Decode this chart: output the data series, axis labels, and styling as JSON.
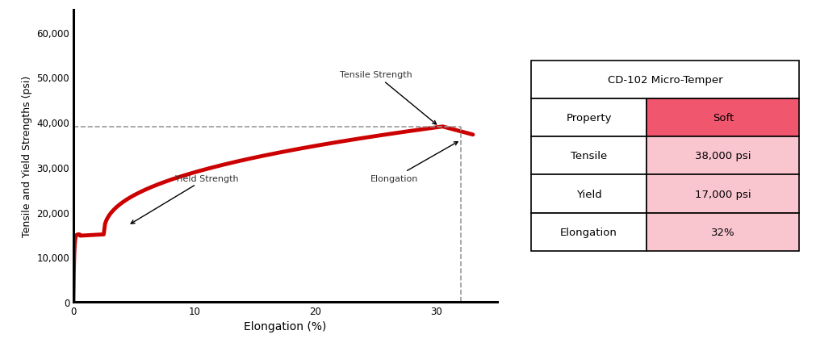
{
  "title": "CD-102 Micro-Temper",
  "ylabel": "Tensile and Yield Strengths (psi)",
  "xlabel": "Elongation (%)",
  "ylim": [
    0,
    65000
  ],
  "xlim": [
    0,
    35
  ],
  "yticks": [
    0,
    10000,
    20000,
    30000,
    40000,
    50000,
    60000
  ],
  "ytick_labels": [
    "0",
    "10,000",
    "20,000",
    "30,000",
    "40,000",
    "50,000",
    "60,000"
  ],
  "xticks": [
    0,
    10,
    20,
    30
  ],
  "curve_color": "#cc0000",
  "curve_linewidth": 3.5,
  "dashed_color": "#999999",
  "dashed_y": 39000,
  "dashed_x_end": 32,
  "table_title": "CD-102 Micro-Temper",
  "table_rows": [
    [
      "Property",
      "Soft"
    ],
    [
      "Tensile",
      "38,000 psi"
    ],
    [
      "Yield",
      "17,000 psi"
    ],
    [
      "Elongation",
      "32%"
    ]
  ],
  "header_color": "#ffffff",
  "soft_color": "#f0566e",
  "data_color": "#f9c6d0",
  "background_color": "#ffffff"
}
